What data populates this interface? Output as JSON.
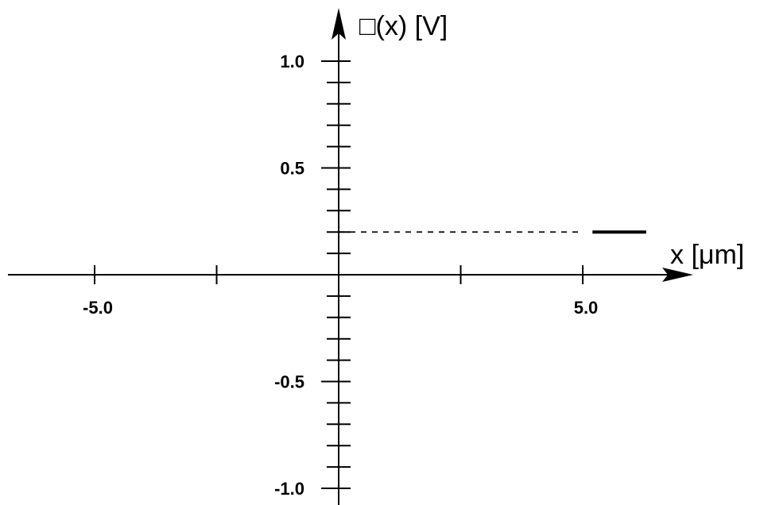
{
  "chart_data": {
    "type": "line",
    "xlabel": "x [μm]",
    "ylabel": "□(x) [V]",
    "xlim": [
      -6.7,
      8.3
    ],
    "ylim": [
      -1.05,
      1.22
    ],
    "x_ticks_major": [
      -5.0,
      5.0
    ],
    "x_ticks_major_labels": [
      "-5.0",
      "5.0"
    ],
    "x_ticks_minor": [
      -2.5,
      2.5
    ],
    "y_ticks_labeled": [
      1.0,
      0.5,
      -0.5,
      -1.0
    ],
    "y_ticks_labels": [
      "1.0",
      "0.5",
      "-0.5",
      "-1.0"
    ],
    "y_tick_step": 0.1,
    "grid": false,
    "series": [
      {
        "style": "dashed",
        "color": "#000000",
        "x": [
          0.0,
          5.0
        ],
        "y": [
          0.2,
          0.2
        ]
      },
      {
        "style": "solid",
        "color": "#000000",
        "x": [
          5.2,
          6.3
        ],
        "y": [
          0.2,
          0.2
        ]
      }
    ]
  }
}
